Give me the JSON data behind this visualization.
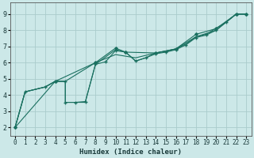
{
  "xlabel": "Humidex (Indice chaleur)",
  "background_color": "#cce8e8",
  "grid_color": "#aacccc",
  "line_color": "#1a7060",
  "xlim": [
    -0.5,
    23.5
  ],
  "ylim": [
    1.5,
    9.7
  ],
  "xticks": [
    0,
    1,
    2,
    3,
    4,
    5,
    6,
    7,
    8,
    9,
    10,
    11,
    12,
    13,
    14,
    15,
    16,
    17,
    18,
    19,
    20,
    21,
    22,
    23
  ],
  "yticks": [
    2,
    3,
    4,
    5,
    6,
    7,
    8,
    9
  ],
  "series_main": [
    [
      0,
      2.0
    ],
    [
      1,
      4.2
    ],
    [
      3,
      4.5
    ],
    [
      4,
      4.85
    ],
    [
      5,
      4.85
    ],
    [
      5,
      3.55
    ],
    [
      6,
      3.55
    ],
    [
      7,
      3.55
    ],
    [
      7,
      3.6
    ],
    [
      8,
      5.9
    ],
    [
      10,
      6.8
    ],
    [
      11,
      6.65
    ],
    [
      12,
      6.1
    ],
    [
      13,
      6.3
    ],
    [
      14,
      6.6
    ],
    [
      15,
      6.7
    ],
    [
      16,
      6.85
    ],
    [
      17,
      7.15
    ],
    [
      18,
      7.6
    ],
    [
      19,
      7.75
    ],
    [
      21,
      8.5
    ],
    [
      22,
      9.0
    ],
    [
      23,
      9.0
    ]
  ],
  "series_smooth": [
    [
      0,
      2.0
    ],
    [
      1,
      4.2
    ],
    [
      3,
      4.5
    ],
    [
      4,
      4.85
    ],
    [
      5,
      4.85
    ],
    [
      8,
      6.0
    ],
    [
      10,
      6.5
    ],
    [
      12,
      6.3
    ],
    [
      14,
      6.6
    ],
    [
      16,
      6.85
    ],
    [
      18,
      7.6
    ],
    [
      20,
      8.0
    ],
    [
      21,
      8.5
    ],
    [
      22,
      9.0
    ],
    [
      23,
      9.0
    ]
  ],
  "series_upper": [
    [
      0,
      2.0
    ],
    [
      4,
      4.85
    ],
    [
      8,
      6.0
    ],
    [
      10,
      6.9
    ],
    [
      11,
      6.65
    ],
    [
      14,
      6.6
    ],
    [
      16,
      6.85
    ],
    [
      18,
      7.75
    ],
    [
      20,
      8.1
    ],
    [
      22,
      9.0
    ],
    [
      23,
      9.0
    ]
  ],
  "series_zigzag": [
    [
      0,
      2.0
    ],
    [
      1,
      4.2
    ],
    [
      3,
      4.5
    ],
    [
      4,
      4.85
    ],
    [
      5,
      4.85
    ],
    [
      5,
      3.55
    ],
    [
      6,
      3.55
    ],
    [
      7,
      3.6
    ],
    [
      8,
      5.9
    ],
    [
      9,
      6.05
    ],
    [
      10,
      6.75
    ],
    [
      11,
      6.65
    ],
    [
      12,
      6.1
    ],
    [
      13,
      6.3
    ],
    [
      14,
      6.55
    ],
    [
      15,
      6.65
    ],
    [
      16,
      6.8
    ],
    [
      17,
      7.1
    ],
    [
      18,
      7.55
    ],
    [
      19,
      7.7
    ],
    [
      20,
      8.0
    ],
    [
      21,
      8.5
    ],
    [
      22,
      9.0
    ],
    [
      23,
      9.0
    ]
  ]
}
